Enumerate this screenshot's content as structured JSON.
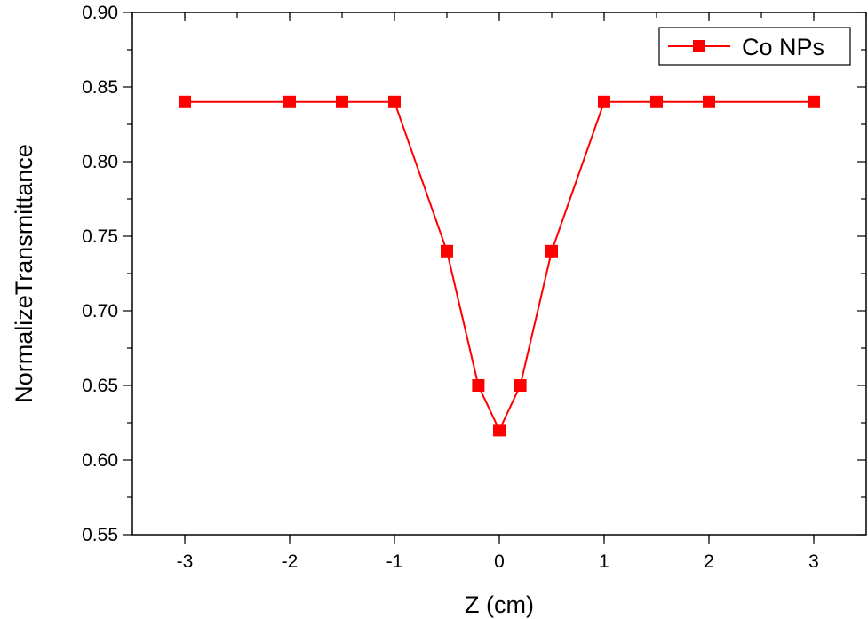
{
  "chart_data": {
    "type": "line",
    "title": "",
    "xlabel": "Z (cm)",
    "ylabel": "NormalizeTransmittance",
    "xlim": [
      -3.5,
      3.5
    ],
    "ylim": [
      0.55,
      0.9
    ],
    "xticks": [
      -3,
      -2,
      -1,
      0,
      1,
      2,
      3
    ],
    "xtick_labels": [
      "-3",
      "-2",
      "-1",
      "0",
      "1",
      "2",
      "3"
    ],
    "yticks": [
      0.55,
      0.6,
      0.65,
      0.7,
      0.75,
      0.8,
      0.85,
      0.9
    ],
    "ytick_labels": [
      "0.55",
      "0.60",
      "0.65",
      "0.70",
      "0.75",
      "0.80",
      "0.85",
      "0.90"
    ],
    "grid": false,
    "legend_position": "top-right",
    "series": [
      {
        "name": "Co NPs",
        "color": "#ff0000",
        "marker": "square",
        "x": [
          -3,
          -2,
          -1.5,
          -1,
          -0.5,
          -0.2,
          0,
          0.2,
          0.5,
          1,
          1.5,
          2,
          3
        ],
        "y": [
          0.84,
          0.84,
          0.84,
          0.84,
          0.74,
          0.65,
          0.62,
          0.65,
          0.74,
          0.84,
          0.84,
          0.84,
          0.84
        ]
      }
    ]
  }
}
